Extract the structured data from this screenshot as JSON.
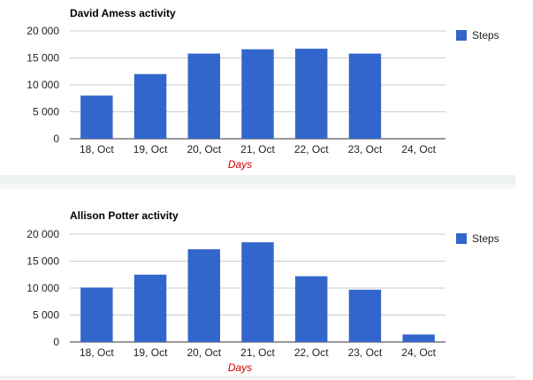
{
  "chart_data": [
    {
      "type": "bar",
      "title": "David Amess activity",
      "xlabel": "Days",
      "ylabel": "",
      "categories": [
        "18, Oct",
        "19, Oct",
        "20, Oct",
        "21, Oct",
        "22, Oct",
        "23, Oct",
        "24, Oct"
      ],
      "series": [
        {
          "name": "Steps",
          "values": [
            8000,
            12000,
            15800,
            16600,
            16700,
            15800,
            0
          ]
        }
      ],
      "ylim": [
        0,
        20000
      ],
      "yticks": [
        "0",
        "5 000",
        "10 000",
        "15 000",
        "20 000"
      ],
      "grid": true,
      "legend": "right",
      "colors": {
        "bar": "#3366cc",
        "xlabel": "#cc0000"
      }
    },
    {
      "type": "bar",
      "title": "Allison Potter activity",
      "xlabel": "Days",
      "ylabel": "",
      "categories": [
        "18, Oct",
        "19, Oct",
        "20, Oct",
        "21, Oct",
        "22, Oct",
        "23, Oct",
        "24, Oct"
      ],
      "series": [
        {
          "name": "Steps",
          "values": [
            10100,
            12500,
            17200,
            18500,
            12200,
            9700,
            1400
          ]
        }
      ],
      "ylim": [
        0,
        20000
      ],
      "yticks": [
        "0",
        "5 000",
        "10 000",
        "15 000",
        "20 000"
      ],
      "grid": true,
      "legend": "right",
      "colors": {
        "bar": "#3366cc",
        "xlabel": "#cc0000"
      }
    }
  ]
}
